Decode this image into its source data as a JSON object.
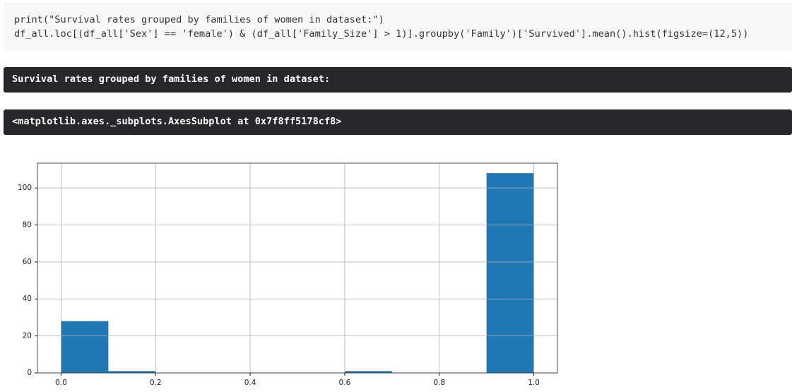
{
  "code": {
    "lines": [
      "print(\"Survival rates grouped by families of women in dataset:\")",
      "df_all.loc[(df_all['Sex'] == 'female') & (df_all['Family_Size'] > 1)].groupby('Family')['Survived'].mean().hist(figsize=(12,5))"
    ]
  },
  "outputs": [
    "Survival rates grouped by families of women in dataset:",
    "<matplotlib.axes._subplots.AxesSubplot at 0x7f8ff5178cf8>"
  ],
  "chart_data": {
    "type": "histogram",
    "bins": [
      0,
      0.1,
      0.2,
      0.3,
      0.4,
      0.5,
      0.6,
      0.7,
      0.8,
      0.9,
      1.0
    ],
    "values": [
      28,
      1,
      0,
      0,
      0,
      0,
      1,
      0,
      0,
      108
    ],
    "color": "#1f77b4",
    "xlim": [
      -0.05,
      1.05
    ],
    "xticks": [
      {
        "value": 0,
        "label": "0.0"
      },
      0.2,
      0.4,
      0.6,
      0.8,
      {
        "value": 1,
        "label": "1.0"
      }
    ],
    "ylim": [
      0,
      113.4
    ],
    "yticks": [
      0,
      20,
      40,
      60,
      80,
      100
    ],
    "grid": true
  }
}
